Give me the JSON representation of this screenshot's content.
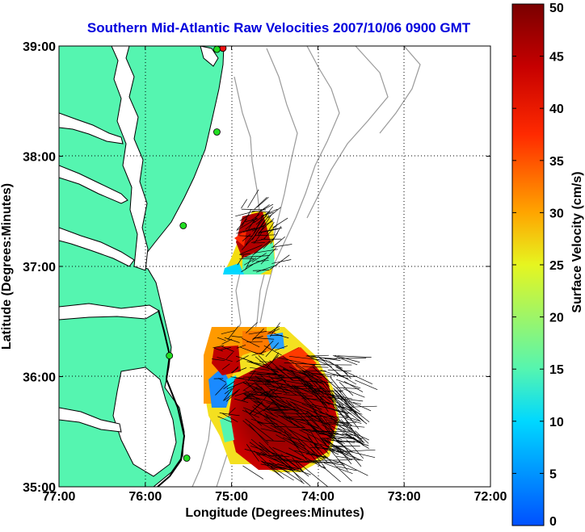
{
  "title": "Southern Mid-Atlantic Raw Velocities 2007/10/06 0900 GMT",
  "colors": {
    "title": "#0000dd",
    "land": "#55f5b0",
    "coast": "#000000",
    "bathymetry": "#9a9a9a",
    "station": "#22dd22",
    "station_alert": "#ee1111",
    "vector": "#000000"
  },
  "chart_data": {
    "type": "heatmap",
    "xlabel": "Longitude (Degrees:Minutes)",
    "ylabel": "Latitude (Degrees:Minutes)",
    "xlim": [
      -77,
      -72
    ],
    "ylim": [
      35,
      39
    ],
    "x_ticks": [
      {
        "value": -77,
        "label": "77:00"
      },
      {
        "value": -76,
        "label": "76:00"
      },
      {
        "value": -75,
        "label": "75:00"
      },
      {
        "value": -74,
        "label": "74:00"
      },
      {
        "value": -73,
        "label": "73:00"
      },
      {
        "value": -72,
        "label": "72:00"
      }
    ],
    "y_ticks": [
      {
        "value": 35,
        "label": "35:00"
      },
      {
        "value": 36,
        "label": "36:00"
      },
      {
        "value": 37,
        "label": "37:00"
      },
      {
        "value": 38,
        "label": "38:00"
      },
      {
        "value": 39,
        "label": "39:00"
      }
    ],
    "grid": true,
    "colorbar": {
      "label": "Surface Velocity (cm/s)",
      "min": 0,
      "max": 50,
      "ticks": [
        "0",
        "5",
        "10",
        "15",
        "20",
        "25",
        "30",
        "35",
        "40",
        "45",
        "50"
      ]
    },
    "stations": [
      {
        "lon": -75.1,
        "lat": 38.98,
        "status": "alert"
      },
      {
        "lon": -75.17,
        "lat": 38.97,
        "status": "ok"
      },
      {
        "lon": -75.17,
        "lat": 38.22,
        "status": "ok"
      },
      {
        "lon": -75.56,
        "lat": 37.37,
        "status": "ok"
      },
      {
        "lon": -75.72,
        "lat": 36.19,
        "status": "ok"
      },
      {
        "lon": -75.52,
        "lat": 35.26,
        "status": "ok"
      }
    ]
  }
}
